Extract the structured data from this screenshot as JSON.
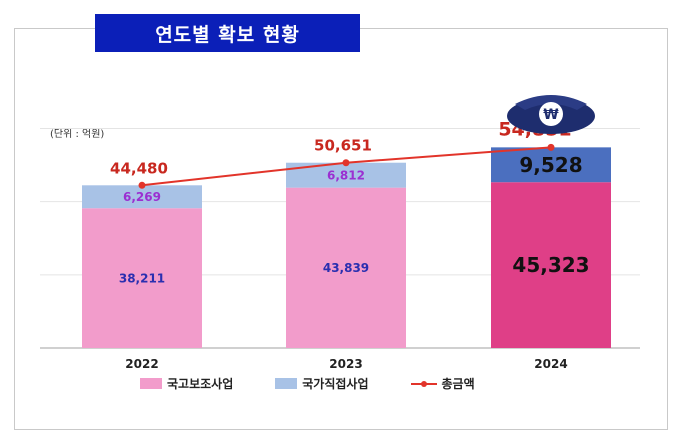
{
  "title": "연도별 확보 현황",
  "unit_label": "(단위 : 억원)",
  "legend": [
    {
      "label": "국고보조사업",
      "color": "#f29ccb"
    },
    {
      "label": "국가직접사업",
      "color": "#a8c2e6"
    },
    {
      "label": "총금액",
      "color": "#e2342a"
    }
  ],
  "chart_data": {
    "type": "bar",
    "stacked": true,
    "categories": [
      "2022",
      "2023",
      "2024"
    ],
    "series": [
      {
        "name": "국고보조사업",
        "values": [
          38211,
          43839,
          45323
        ],
        "color": "#f29ccb",
        "color_highlight": "#df3f87"
      },
      {
        "name": "국가직접사업",
        "values": [
          6269,
          6812,
          9528
        ],
        "color": "#a8c2e6",
        "color_highlight": "#4b6fbf"
      },
      {
        "name": "총금액",
        "type": "line",
        "values": [
          44480,
          50651,
          54851
        ],
        "color": "#e2342a"
      }
    ],
    "data_labels": {
      "국고보조사업": [
        "38,211",
        "43,839",
        "45,323"
      ],
      "국가직접사업": [
        "6,269",
        "6,812",
        "9,528"
      ],
      "총금액": [
        "44,480",
        "50,651",
        "54,851"
      ]
    },
    "ylim": [
      0,
      70000
    ],
    "grid": true,
    "legend_position": "bottom"
  }
}
